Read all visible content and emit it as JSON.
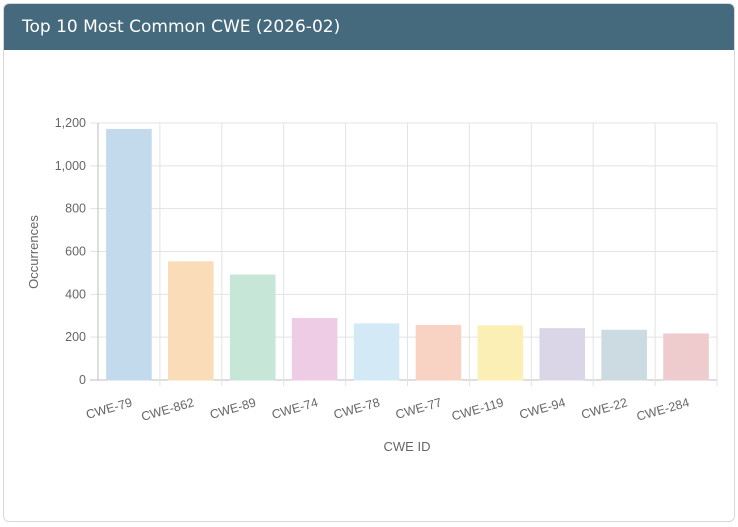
{
  "card": {
    "title": "Top 10 Most Common CWE (2026-02)"
  },
  "chart_data": {
    "type": "bar",
    "title": "Top 10 Most Common CWE (2026-02)",
    "xlabel": "CWE ID",
    "ylabel": "Occurrences",
    "ylim": [
      0,
      1200
    ],
    "yticks": [
      0,
      200,
      400,
      600,
      800,
      1000,
      1200
    ],
    "ytick_labels": [
      "0",
      "200",
      "400",
      "600",
      "800",
      "1,000",
      "1,200"
    ],
    "grid": true,
    "categories": [
      "CWE-79",
      "CWE-862",
      "CWE-89",
      "CWE-74",
      "CWE-78",
      "CWE-77",
      "CWE-119",
      "CWE-94",
      "CWE-22",
      "CWE-284"
    ],
    "values": [
      1170,
      552,
      490,
      287,
      262,
      255,
      253,
      240,
      232,
      215
    ],
    "colors": [
      "#c3d9ec",
      "#fbdcb9",
      "#c6e6d7",
      "#efcce6",
      "#d4e9f6",
      "#f8d2c3",
      "#fbefb5",
      "#dad6e7",
      "#cbdbe1",
      "#eecbcd"
    ]
  }
}
